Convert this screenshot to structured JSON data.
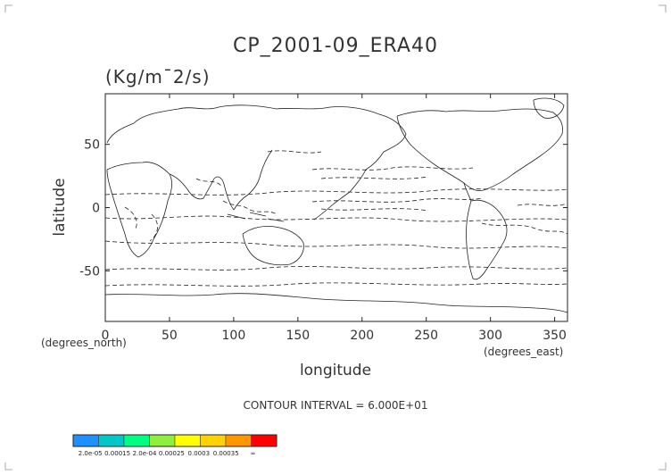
{
  "chart_data": {
    "type": "contour-map",
    "title": "CP_2001-09_ERA40",
    "units": "(Kg/m¯2/s)",
    "xlabel": "longitude",
    "ylabel": "latitude",
    "x_unit_note": "(degrees_east)",
    "y_unit_note": "(degrees_north)",
    "xlim": [
      0,
      360
    ],
    "ylim": [
      -90,
      90
    ],
    "x_ticks": [
      0,
      50,
      100,
      150,
      200,
      250,
      300,
      350
    ],
    "y_ticks": [
      50,
      0,
      -50
    ],
    "contour_interval_text": "CONTOUR INTERVAL = 6.000E+01",
    "contour_style": "dashed",
    "colorbar": {
      "labels": [
        "2.0e-05",
        "0.00015",
        "2.0e-04",
        "0.00025",
        "0.0003",
        "0.00035",
        "∞"
      ],
      "colors": [
        "#1e90ff",
        "#00c8c8",
        "#00ff80",
        "#90ee40",
        "#ffff00",
        "#ffd200",
        "#ff9600",
        "#ff0000"
      ]
    }
  }
}
